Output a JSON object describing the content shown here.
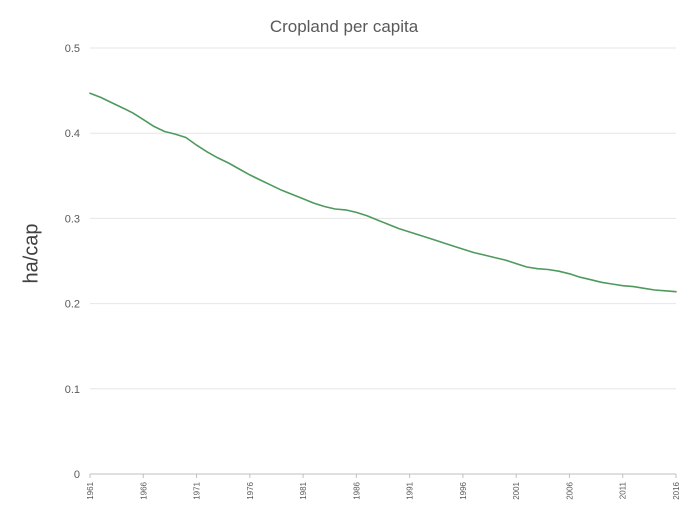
{
  "chart_data": {
    "type": "line",
    "title": "Cropland per capita",
    "xlabel": "",
    "ylabel": "ha/cap",
    "ylim": [
      0,
      0.5
    ],
    "yticks": [
      "0",
      "0.1",
      "0.2",
      "0.3",
      "0.4",
      "0.5"
    ],
    "xlim": [
      1961,
      2016
    ],
    "xticks": [
      "1961",
      "1966",
      "1971",
      "1976",
      "1981",
      "1986",
      "1991",
      "1996",
      "2001",
      "2006",
      "2011",
      "2016"
    ],
    "grid": true,
    "line_color": "#4e9a5e",
    "series": [
      {
        "x": [
          1961,
          1962,
          1963,
          1964,
          1965,
          1966,
          1967,
          1968,
          1969,
          1970,
          1971,
          1972,
          1973,
          1974,
          1975,
          1976,
          1977,
          1978,
          1979,
          1980,
          1981,
          1982,
          1983,
          1984,
          1985,
          1986,
          1987,
          1988,
          1989,
          1990,
          1991,
          1992,
          1993,
          1994,
          1995,
          1996,
          1997,
          1998,
          1999,
          2000,
          2001,
          2002,
          2003,
          2004,
          2005,
          2006,
          2007,
          2008,
          2009,
          2010,
          2011,
          2012,
          2013,
          2014,
          2015,
          2016
        ],
        "values": [
          0.447,
          0.442,
          0.436,
          0.43,
          0.424,
          0.416,
          0.408,
          0.402,
          0.399,
          0.395,
          0.386,
          0.378,
          0.371,
          0.365,
          0.358,
          0.351,
          0.345,
          0.339,
          0.333,
          0.328,
          0.323,
          0.318,
          0.314,
          0.311,
          0.31,
          0.307,
          0.303,
          0.298,
          0.293,
          0.288,
          0.284,
          0.28,
          0.276,
          0.272,
          0.268,
          0.264,
          0.26,
          0.257,
          0.254,
          0.251,
          0.247,
          0.243,
          0.241,
          0.24,
          0.238,
          0.235,
          0.231,
          0.228,
          0.225,
          0.223,
          0.221,
          0.22,
          0.218,
          0.216,
          0.215,
          0.214
        ]
      }
    ]
  }
}
